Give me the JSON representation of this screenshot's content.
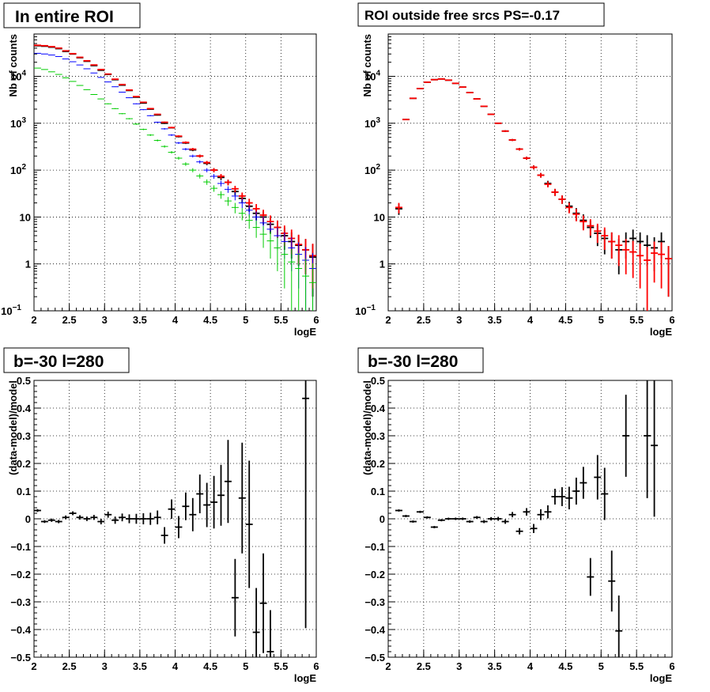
{
  "chart_data": [
    {
      "type": "scatter",
      "title": "In entire ROI",
      "xlabel": "logE",
      "ylabel": "Nb of counts",
      "xlim": [
        2,
        6
      ],
      "ylim": [
        0.1,
        80000
      ],
      "yscale": "log",
      "grid": true,
      "xticks": [
        "2",
        "2.5",
        "3",
        "3.5",
        "4",
        "4.5",
        "5",
        "5.5",
        "6"
      ],
      "yticks": [
        {
          "v": 0.1,
          "b": "10",
          "e": "−1"
        },
        {
          "v": 1,
          "b": "1",
          "e": ""
        },
        {
          "v": 10,
          "b": "10",
          "e": ""
        },
        {
          "v": 100,
          "b": "10",
          "e": "2"
        },
        {
          "v": 1000,
          "b": "10",
          "e": "3"
        },
        {
          "v": 10000,
          "b": "10",
          "e": "4"
        }
      ],
      "x": [
        2.05,
        2.15,
        2.25,
        2.35,
        2.45,
        2.55,
        2.65,
        2.75,
        2.85,
        2.95,
        3.05,
        3.15,
        3.25,
        3.35,
        3.45,
        3.55,
        3.65,
        3.75,
        3.85,
        3.95,
        4.05,
        4.15,
        4.25,
        4.35,
        4.45,
        4.55,
        4.65,
        4.75,
        4.85,
        4.95,
        5.05,
        5.15,
        5.25,
        5.35,
        5.45,
        5.55,
        5.65,
        5.75,
        5.85,
        5.95
      ],
      "series": [
        {
          "color": "#000000",
          "values": [
            45000,
            44000,
            42000,
            39000,
            34000,
            30000,
            25000,
            21000,
            17000,
            13500,
            11000,
            8500,
            6500,
            5000,
            3600,
            2700,
            2000,
            1500,
            1000,
            800,
            520,
            380,
            270,
            200,
            140,
            100,
            70,
            55,
            35,
            25,
            17,
            12,
            10,
            7,
            6,
            4,
            3,
            2.5,
            2,
            1.4
          ],
          "errs": [
            210,
            210,
            205,
            197,
            184,
            173,
            158,
            145,
            130,
            116,
            105,
            92,
            81,
            71,
            60,
            52,
            45,
            39,
            32,
            28,
            23,
            19,
            16,
            14,
            12,
            10,
            8.4,
            7.4,
            5.9,
            5,
            4.1,
            3.5,
            3.2,
            2.6,
            2.4,
            2,
            1.7,
            1.6,
            1.4,
            1.2
          ]
        },
        {
          "color": "#ff0000",
          "values": [
            46000,
            45000,
            43000,
            40000,
            35000,
            30500,
            25500,
            21500,
            17500,
            14000,
            11200,
            8700,
            6700,
            5100,
            3700,
            2800,
            2050,
            1550,
            1050,
            810,
            530,
            390,
            280,
            200,
            145,
            100,
            74,
            55,
            40,
            28,
            20,
            15,
            11,
            8,
            6,
            4.5,
            3.5,
            2.6,
            2,
            1.5
          ],
          "errs": [
            214,
            212,
            207,
            200,
            187,
            175,
            160,
            147,
            132,
            118,
            106,
            93,
            82,
            71,
            61,
            53,
            45,
            39,
            32,
            28,
            23,
            20,
            17,
            14,
            12,
            10,
            8.6,
            7.4,
            6.3,
            5.3,
            4.5,
            3.9,
            3.3,
            2.8,
            2.4,
            2.1,
            1.9,
            1.6,
            1.4,
            1.2
          ]
        },
        {
          "color": "#0000ff",
          "values": [
            31000,
            30000,
            28500,
            26500,
            23500,
            20500,
            17500,
            14500,
            11800,
            9500,
            7600,
            6000,
            4600,
            3500,
            2600,
            1950,
            1450,
            1050,
            760,
            560,
            380,
            280,
            200,
            150,
            100,
            74,
            52,
            39,
            28,
            20,
            14,
            10,
            7.5,
            5.5,
            4,
            3,
            2.2,
            1.6,
            1.2,
            0.8
          ],
          "errs": [
            176,
            173,
            169,
            163,
            153,
            143,
            132,
            120,
            109,
            97,
            87,
            77,
            68,
            59,
            51,
            44,
            38,
            32,
            28,
            24,
            19,
            17,
            14,
            12,
            10,
            8.6,
            7.2,
            6.2,
            5.3,
            4.5,
            3.7,
            3.2,
            2.7,
            2.3,
            2,
            1.7,
            1.5,
            1.3,
            1.1,
            0.9
          ]
        },
        {
          "color": "#00cc00",
          "values": [
            15000,
            14000,
            12500,
            11000,
            9300,
            7800,
            6400,
            5200,
            4100,
            3300,
            2600,
            2050,
            1600,
            1250,
            960,
            740,
            560,
            430,
            320,
            240,
            180,
            135,
            100,
            75,
            56,
            41,
            30,
            22,
            16,
            12,
            8.5,
            6,
            4.3,
            3.1,
            2.2,
            1.6,
            1.1,
            0.8,
            0.55,
            0.4
          ],
          "errs": [
            122,
            118,
            112,
            105,
            96,
            88,
            80,
            72,
            64,
            57,
            51,
            45,
            40,
            35,
            31,
            27,
            24,
            21,
            18,
            15,
            13,
            12,
            10,
            8.7,
            7.5,
            6.4,
            5.5,
            4.7,
            4,
            3.5,
            2.9,
            2.4,
            2.1,
            1.8,
            1.5,
            1.3,
            1,
            0.9,
            0.74,
            0.63
          ]
        }
      ]
    },
    {
      "type": "scatter",
      "title": "ROI outside free srcs PS=-0.17",
      "xlabel": "logE",
      "ylabel": "Nb of counts",
      "xlim": [
        2,
        6
      ],
      "ylim": [
        0.1,
        80000
      ],
      "yscale": "log",
      "grid": true,
      "xticks": [
        "2",
        "2.5",
        "3",
        "3.5",
        "4",
        "4.5",
        "5",
        "5.5",
        "6"
      ],
      "yticks": [
        {
          "v": 0.1,
          "b": "10",
          "e": "−1"
        },
        {
          "v": 1,
          "b": "1",
          "e": ""
        },
        {
          "v": 10,
          "b": "10",
          "e": ""
        },
        {
          "v": 100,
          "b": "10",
          "e": "2"
        },
        {
          "v": 1000,
          "b": "10",
          "e": "3"
        },
        {
          "v": 10000,
          "b": "10",
          "e": "4"
        }
      ],
      "x": [
        2.15,
        2.25,
        2.35,
        2.45,
        2.55,
        2.65,
        2.75,
        2.85,
        2.95,
        3.05,
        3.15,
        3.25,
        3.35,
        3.45,
        3.55,
        3.65,
        3.75,
        3.85,
        3.95,
        4.05,
        4.15,
        4.25,
        4.35,
        4.45,
        4.55,
        4.65,
        4.75,
        4.85,
        4.95,
        5.05,
        5.15,
        5.25,
        5.35,
        5.45,
        5.55,
        5.65,
        5.75,
        5.85,
        5.95
      ],
      "series": [
        {
          "color": "#000000",
          "values": [
            15,
            1200,
            3400,
            5500,
            7500,
            8500,
            8800,
            8300,
            7100,
            5900,
            4500,
            3300,
            2300,
            1550,
            1000,
            680,
            440,
            280,
            180,
            115,
            78,
            52,
            34,
            24,
            17,
            12,
            8.5,
            6,
            4.5,
            3.5,
            3,
            2,
            3,
            3.5,
            3,
            2.5,
            2.2,
            3,
            1.3
          ],
          "errs": [
            3.9,
            35,
            58,
            74,
            87,
            92,
            94,
            91,
            84,
            77,
            67,
            57,
            48,
            39,
            32,
            26,
            21,
            17,
            13,
            11,
            8.8,
            7.2,
            5.8,
            4.9,
            4.1,
            3.5,
            2.9,
            2.4,
            2.1,
            1.9,
            1.7,
            1.4,
            1.7,
            1.9,
            1.7,
            1.6,
            1.5,
            1.7,
            1.1
          ]
        },
        {
          "color": "#ff0000",
          "values": [
            16,
            1200,
            3400,
            5500,
            7500,
            8500,
            8800,
            8300,
            7100,
            5900,
            4500,
            3300,
            2300,
            1550,
            1000,
            680,
            440,
            280,
            180,
            115,
            78,
            50,
            34,
            24,
            16,
            11.5,
            8,
            6.5,
            5,
            4,
            3,
            2.5,
            2,
            1.8,
            1.5,
            1.2,
            1.7,
            1.6,
            1.3
          ],
          "errs": [
            4,
            35,
            58,
            74,
            87,
            92,
            94,
            91,
            84,
            77,
            67,
            57,
            48,
            39,
            32,
            26,
            21,
            17,
            13,
            11,
            8.8,
            7.1,
            5.8,
            4.9,
            4,
            3.4,
            2.8,
            2.5,
            2.2,
            2,
            1.7,
            1.6,
            1.4,
            1.3,
            1.2,
            1.1,
            1.3,
            1.3,
            1.1
          ]
        }
      ]
    },
    {
      "type": "scatter",
      "title": "b=-30 l=280",
      "xlabel": "logE",
      "ylabel": "(data-model)/model",
      "xlim": [
        2,
        6
      ],
      "ylim": [
        -0.5,
        0.5
      ],
      "yscale": "linear",
      "grid": true,
      "xticks": [
        "2",
        "2.5",
        "3",
        "3.5",
        "4",
        "4.5",
        "5",
        "5.5",
        "6"
      ],
      "yticks": [
        {
          "v": -0.5,
          "b": "−0.5",
          "e": ""
        },
        {
          "v": -0.4,
          "b": "−0.4",
          "e": ""
        },
        {
          "v": -0.3,
          "b": "−0.3",
          "e": ""
        },
        {
          "v": -0.2,
          "b": "−0.2",
          "e": ""
        },
        {
          "v": -0.1,
          "b": "−0.1",
          "e": ""
        },
        {
          "v": 0,
          "b": "0",
          "e": ""
        },
        {
          "v": 0.1,
          "b": "0.1",
          "e": ""
        },
        {
          "v": 0.2,
          "b": "0.2",
          "e": ""
        },
        {
          "v": 0.3,
          "b": "0.3",
          "e": ""
        },
        {
          "v": 0.4,
          "b": "0.4",
          "e": ""
        },
        {
          "v": 0.5,
          "b": "0.5",
          "e": ""
        }
      ],
      "x": [
        2.05,
        2.15,
        2.25,
        2.35,
        2.45,
        2.55,
        2.65,
        2.75,
        2.85,
        2.95,
        3.05,
        3.15,
        3.25,
        3.35,
        3.45,
        3.55,
        3.65,
        3.75,
        3.85,
        3.95,
        4.05,
        4.15,
        4.25,
        4.35,
        4.45,
        4.55,
        4.65,
        4.75,
        4.85,
        4.95,
        5.05,
        5.15,
        5.25,
        5.35,
        5.85
      ],
      "series": [
        {
          "color": "#000000",
          "values": [
            0.03,
            -0.01,
            -0.005,
            -0.01,
            0.005,
            0.02,
            0.005,
            0,
            0.005,
            -0.01,
            0.015,
            -0.005,
            0.005,
            0,
            0,
            0,
            0,
            0.005,
            -0.06,
            0.035,
            -0.03,
            0.045,
            0.015,
            0.09,
            0.05,
            0.06,
            0.085,
            0.135,
            -0.285,
            0.075,
            -0.02,
            -0.41,
            -0.305,
            -0.48,
            0.435
          ],
          "errs": [
            0.005,
            0.005,
            0.006,
            0.006,
            0.007,
            0.007,
            0.008,
            0.008,
            0.009,
            0.01,
            0.011,
            0.013,
            0.014,
            0.016,
            0.018,
            0.02,
            0.022,
            0.025,
            0.03,
            0.035,
            0.04,
            0.05,
            0.06,
            0.07,
            0.08,
            0.095,
            0.11,
            0.15,
            0.14,
            0.2,
            0.23,
            0.16,
            0.18,
            0.15,
            0.83
          ]
        }
      ]
    },
    {
      "type": "scatter",
      "title": "b=-30 l=280",
      "xlabel": "logE",
      "ylabel": "(data-model)/model",
      "xlim": [
        2,
        6
      ],
      "ylim": [
        -0.5,
        0.5
      ],
      "yscale": "linear",
      "grid": true,
      "xticks": [
        "2",
        "2.5",
        "3",
        "3.5",
        "4",
        "4.5",
        "5",
        "5.5",
        "6"
      ],
      "yticks": [
        {
          "v": -0.5,
          "b": "−0.5",
          "e": ""
        },
        {
          "v": -0.4,
          "b": "−0.4",
          "e": ""
        },
        {
          "v": -0.3,
          "b": "−0.3",
          "e": ""
        },
        {
          "v": -0.2,
          "b": "−0.2",
          "e": ""
        },
        {
          "v": -0.1,
          "b": "−0.1",
          "e": ""
        },
        {
          "v": 0,
          "b": "0",
          "e": ""
        },
        {
          "v": 0.1,
          "b": "0.1",
          "e": ""
        },
        {
          "v": 0.2,
          "b": "0.2",
          "e": ""
        },
        {
          "v": 0.3,
          "b": "0.3",
          "e": ""
        },
        {
          "v": 0.4,
          "b": "0.4",
          "e": ""
        },
        {
          "v": 0.5,
          "b": "0.5",
          "e": ""
        }
      ],
      "x": [
        2.15,
        2.25,
        2.35,
        2.45,
        2.55,
        2.65,
        2.75,
        2.85,
        2.95,
        3.05,
        3.15,
        3.25,
        3.35,
        3.45,
        3.55,
        3.65,
        3.75,
        3.85,
        3.95,
        4.05,
        4.15,
        4.25,
        4.35,
        4.45,
        4.55,
        4.65,
        4.75,
        4.85,
        4.95,
        5.05,
        5.15,
        5.25,
        5.35,
        5.65,
        5.75
      ],
      "series": [
        {
          "color": "#000000",
          "values": [
            0.03,
            0.01,
            -0.01,
            0.025,
            0.005,
            -0.03,
            -0.005,
            0,
            0,
            0,
            -0.01,
            0.005,
            -0.01,
            0,
            0,
            -0.01,
            0.015,
            -0.045,
            0.025,
            -0.035,
            0.015,
            0.025,
            0.08,
            0.08,
            0.075,
            0.1,
            0.13,
            -0.21,
            0.15,
            0.09,
            -0.225,
            -0.405,
            0.3,
            0.3,
            0.265
          ]
        }
      ]
    }
  ]
}
